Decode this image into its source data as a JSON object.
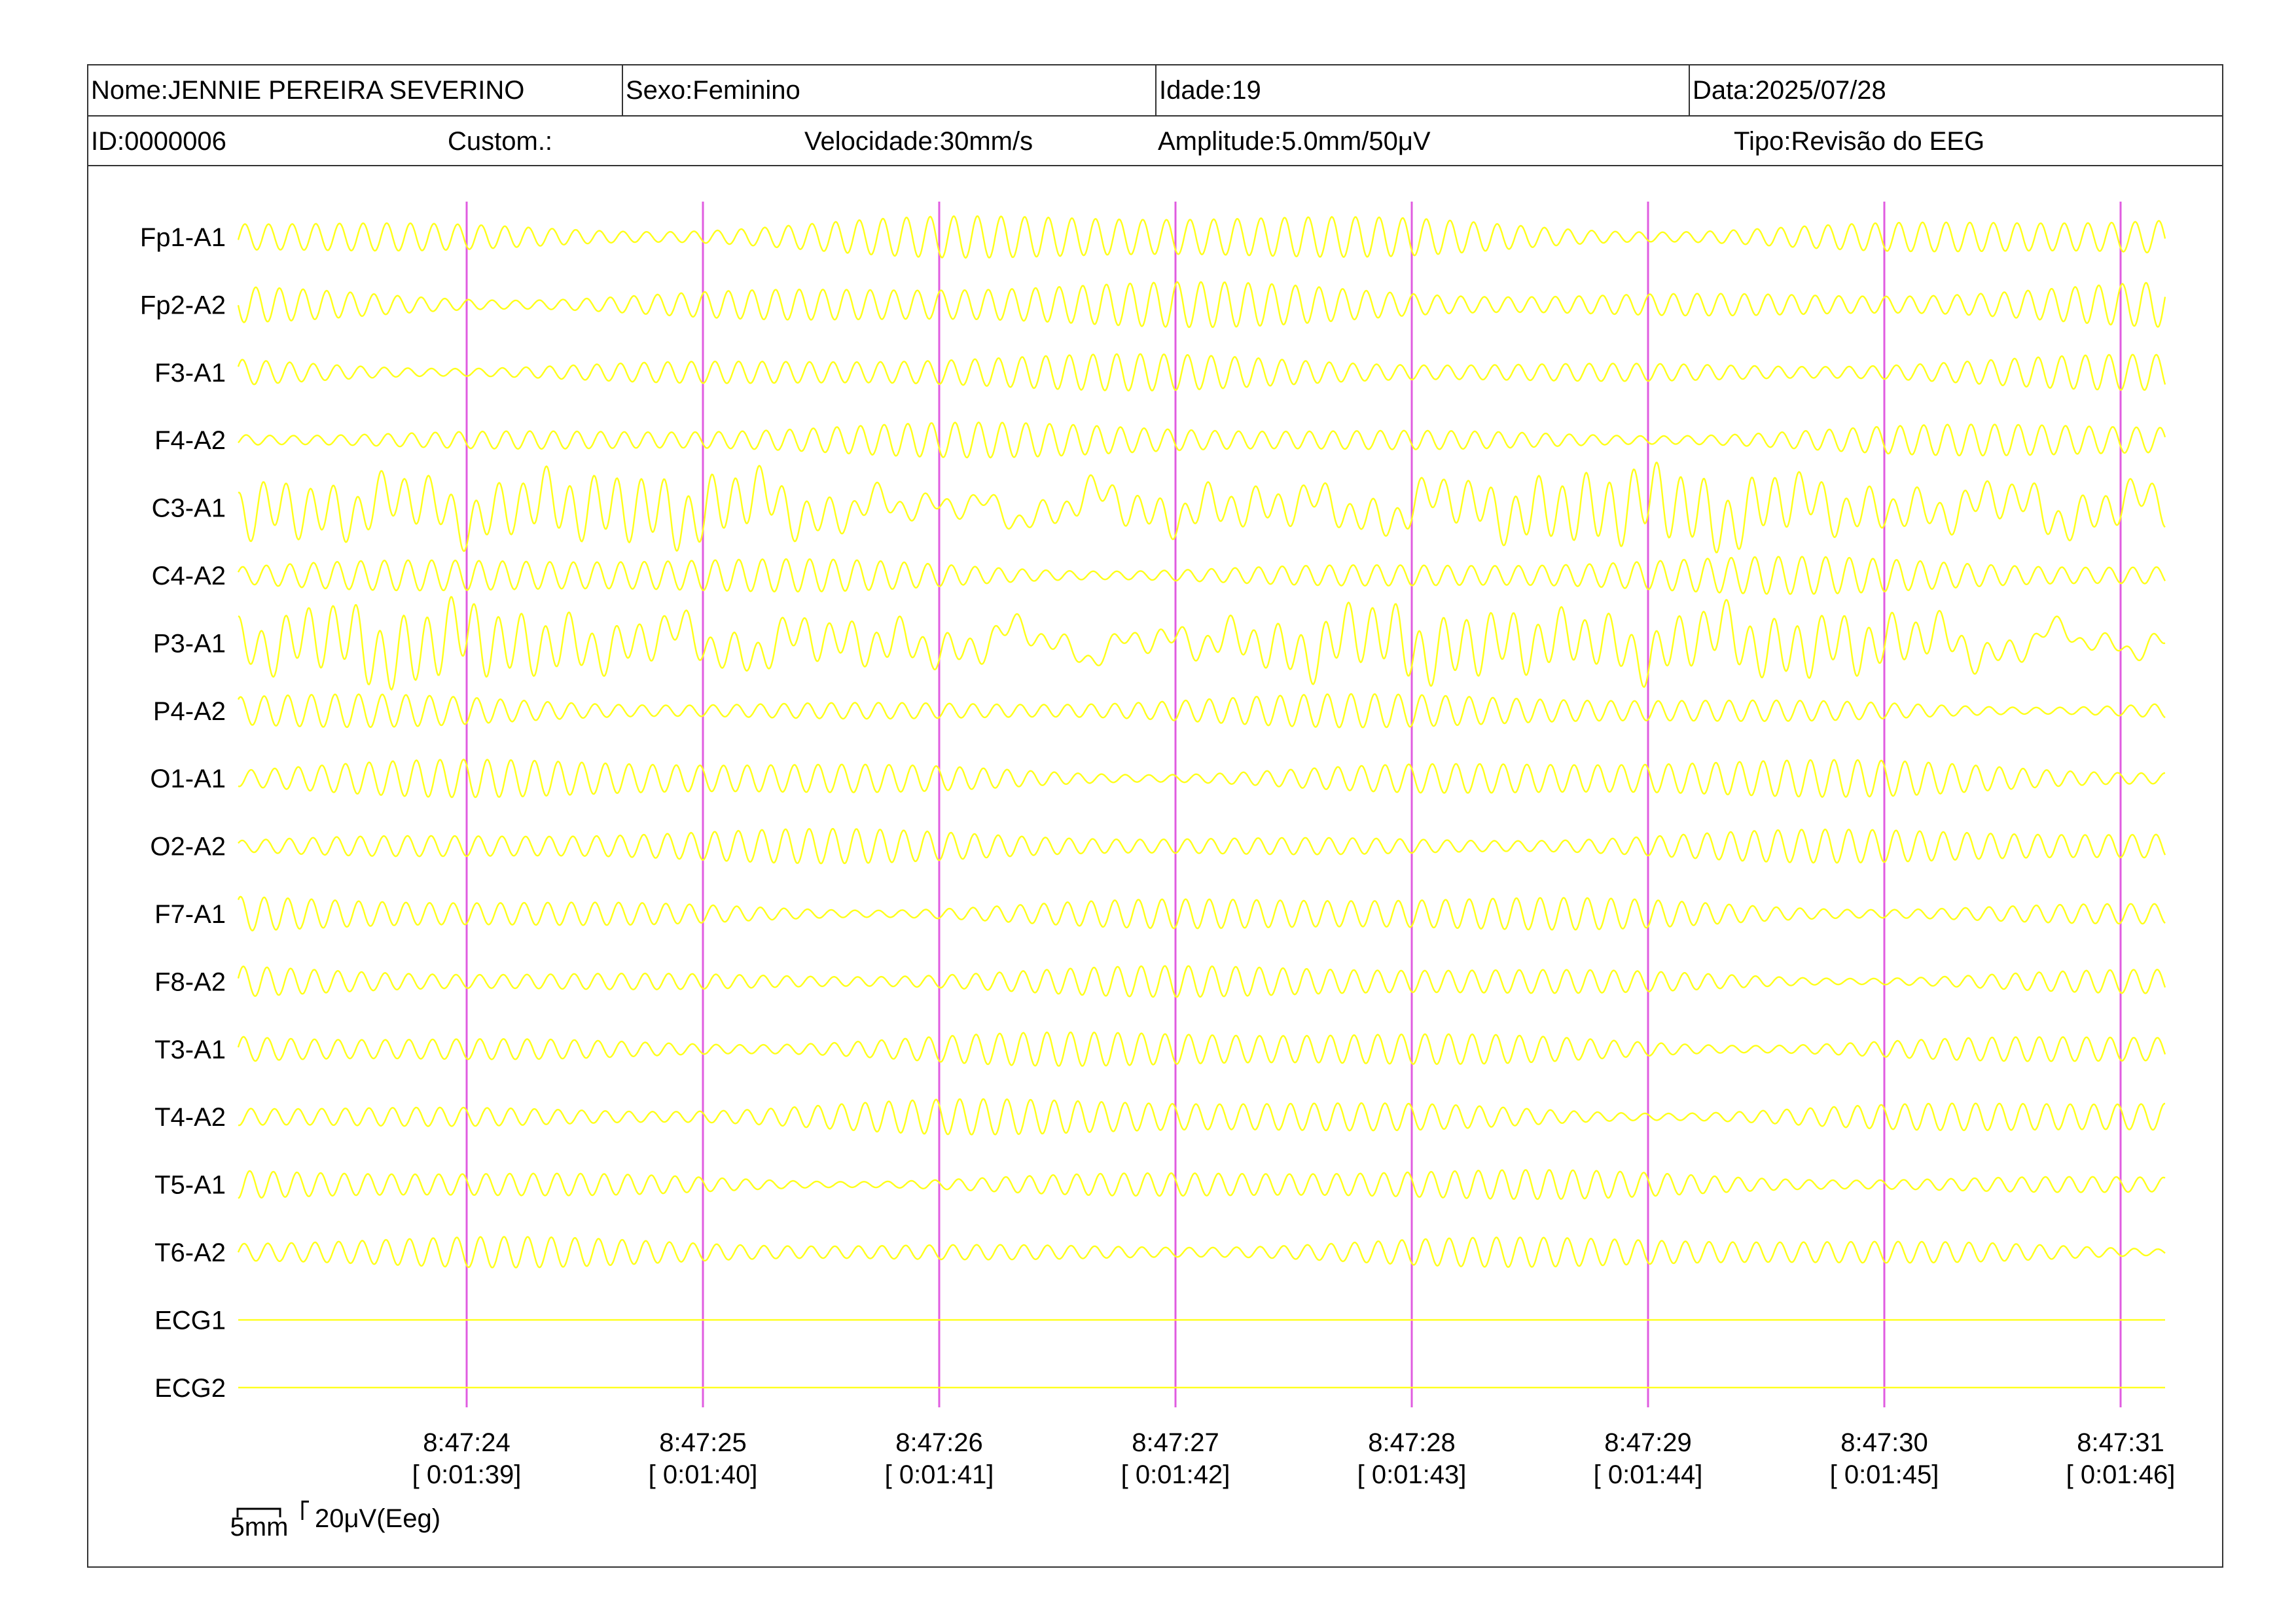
{
  "header": {
    "name_label": "Nome:JENNIE PEREIRA SEVERINO",
    "sex_label": "Sexo:Feminino",
    "age_label": "Idade:19",
    "date_label": "Data:2025/07/28",
    "id_label": "ID:0000006",
    "custom_label": "Custom.:",
    "speed_label": "Velocidade:30mm/s",
    "amplitude_label": "Amplitude:5.0mm/50μV",
    "type_label": "Tipo:Revisão do EEG"
  },
  "scale_bar": {
    "time_label": "5mm",
    "amplitude_label": "20μV(Eeg)"
  },
  "colors": {
    "trace": "#ffff1a",
    "marker": "#e05ce0",
    "border": "#333333"
  },
  "chart_data": {
    "type": "line",
    "channels": [
      "Fp1-A1",
      "Fp2-A2",
      "F3-A1",
      "F4-A2",
      "C3-A1",
      "C4-A2",
      "P3-A1",
      "P4-A2",
      "O1-A1",
      "O2-A2",
      "F7-A1",
      "F8-A2",
      "T3-A1",
      "T4-A2",
      "T5-A1",
      "T6-A2",
      "ECG1",
      "ECG2"
    ],
    "channel_types": [
      "eeg",
      "eeg",
      "eeg",
      "eeg",
      "eeg-artifact",
      "eeg",
      "eeg-artifact",
      "eeg",
      "eeg",
      "eeg",
      "eeg",
      "eeg",
      "eeg",
      "eeg",
      "eeg",
      "eeg",
      "flat",
      "flat"
    ],
    "time_start": "8:47:23",
    "time_end": "8:47:31",
    "ticks": [
      {
        "time": "8:47:24",
        "elapsed": "[ 0:01:39]"
      },
      {
        "time": "8:47:25",
        "elapsed": "[ 0:01:40]"
      },
      {
        "time": "8:47:26",
        "elapsed": "[ 0:01:41]"
      },
      {
        "time": "8:47:27",
        "elapsed": "[ 0:01:42]"
      },
      {
        "time": "8:47:28",
        "elapsed": "[ 0:01:43]"
      },
      {
        "time": "8:47:29",
        "elapsed": "[ 0:01:44]"
      },
      {
        "time": "8:47:30",
        "elapsed": "[ 0:01:45]"
      },
      {
        "time": "8:47:31",
        "elapsed": "[ 0:01:46]"
      }
    ],
    "dominant_frequency_hz": 10
  }
}
